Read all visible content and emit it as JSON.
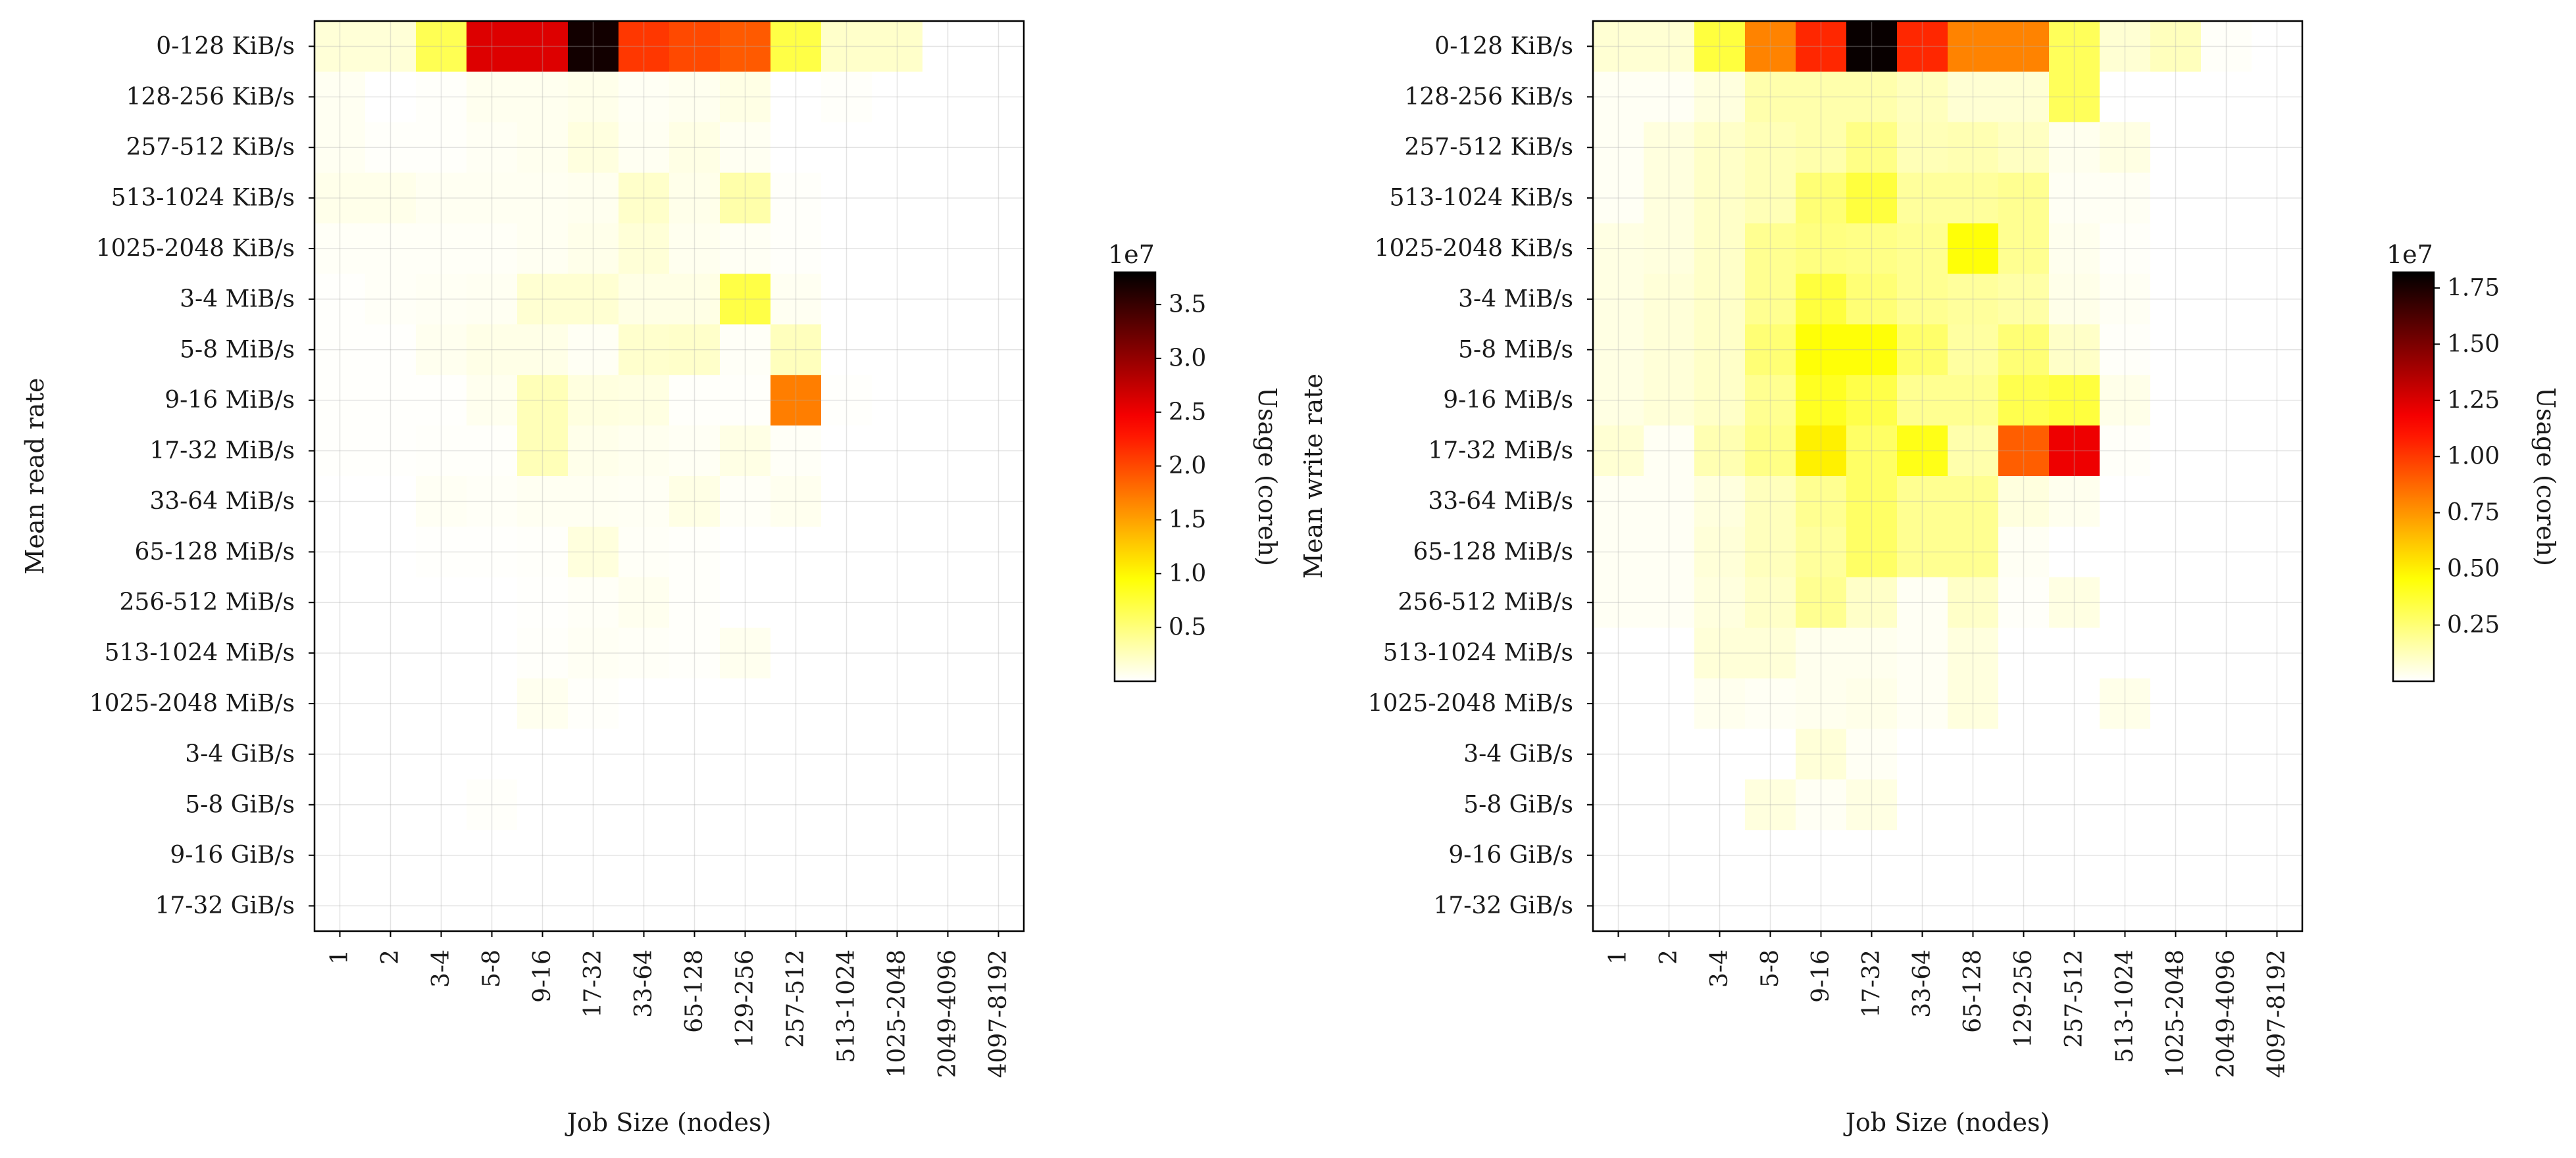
{
  "chart_data": [
    {
      "type": "heatmap",
      "xlabel": "Job Size (nodes)",
      "ylabel": "Mean read rate",
      "x_categories": [
        "1",
        "2",
        "3-4",
        "5-8",
        "9-16",
        "17-32",
        "33-64",
        "65-128",
        "129-256",
        "257-512",
        "513-1024",
        "1025-2048",
        "2049-4096",
        "4097-8192"
      ],
      "y_categories": [
        "0-128 KiB/s",
        "128-256 KiB/s",
        "257-512 KiB/s",
        "513-1024 KiB/s",
        "1025-2048 KiB/s",
        "3-4 MiB/s",
        "5-8 MiB/s",
        "9-16 MiB/s",
        "17-32 MiB/s",
        "33-64 MiB/s",
        "65-128 MiB/s",
        "256-512 MiB/s",
        "513-1024 MiB/s",
        "1025-2048 MiB/s",
        "3-4 GiB/s",
        "5-8 GiB/s",
        "9-16 GiB/s",
        "17-32 GiB/s"
      ],
      "values": [
        [
          1.5,
          1.5,
          6.5,
          26,
          26,
          37,
          21,
          20,
          19,
          7,
          2,
          2,
          0,
          0
        ],
        [
          0.5,
          0,
          0.2,
          0.6,
          0.6,
          0.8,
          0.4,
          0.6,
          1,
          0,
          0.2,
          0,
          0,
          0
        ],
        [
          0.5,
          0.2,
          0.2,
          0.4,
          0.6,
          1.2,
          0.5,
          1,
          0.5,
          0,
          0,
          0,
          0,
          0
        ],
        [
          0.8,
          0.8,
          0.5,
          0.5,
          0.5,
          0.6,
          2,
          0.8,
          3.2,
          0.2,
          0,
          0,
          0,
          0
        ],
        [
          0.3,
          0.3,
          0.3,
          0.3,
          0.5,
          0.8,
          1.5,
          0.6,
          0.4,
          0.2,
          0,
          0,
          0,
          0
        ],
        [
          0.1,
          0.3,
          0.4,
          0.5,
          1.7,
          1.7,
          1,
          1,
          7,
          0.5,
          0,
          0,
          0,
          0
        ],
        [
          0.1,
          0.1,
          0.6,
          0.9,
          0.9,
          0.4,
          1.9,
          2,
          0.3,
          2.5,
          0,
          0,
          0,
          0
        ],
        [
          0.1,
          0.1,
          0.1,
          0.6,
          2.7,
          1.2,
          1.1,
          0.2,
          0.2,
          17,
          0.1,
          0,
          0,
          0
        ],
        [
          0.1,
          0.1,
          0.2,
          0.2,
          2.7,
          0.8,
          0.6,
          0.4,
          1,
          0.3,
          0,
          0,
          0,
          0
        ],
        [
          0,
          0,
          0.4,
          0.3,
          0.5,
          0.5,
          0.4,
          1,
          0.3,
          0.6,
          0,
          0,
          0,
          0
        ],
        [
          0,
          0,
          0.1,
          0.1,
          0.2,
          1.3,
          0.3,
          0.2,
          0,
          0,
          0,
          0,
          0,
          0
        ],
        [
          0,
          0,
          0,
          0,
          0.1,
          0.3,
          0.6,
          0.2,
          0,
          0,
          0,
          0,
          0,
          0
        ],
        [
          0,
          0,
          0,
          0,
          0.2,
          0.4,
          0.3,
          0.2,
          0.6,
          0,
          0,
          0,
          0,
          0
        ],
        [
          0,
          0,
          0,
          0,
          0.6,
          0.2,
          0,
          0,
          0,
          0,
          0,
          0,
          0,
          0
        ],
        [
          0,
          0,
          0,
          0,
          0,
          0,
          0,
          0,
          0,
          0,
          0,
          0,
          0,
          0
        ],
        [
          0,
          0,
          0,
          0.2,
          0,
          0,
          0,
          0,
          0,
          0,
          0,
          0,
          0,
          0
        ],
        [
          0,
          0,
          0,
          0,
          0,
          0,
          0,
          0,
          0,
          0,
          0,
          0,
          0,
          0
        ],
        [
          0,
          0,
          0,
          0,
          0,
          0,
          0,
          0,
          0,
          0,
          0,
          0,
          0,
          0
        ]
      ],
      "value_scale": 1000000,
      "colorbar": {
        "label": "Usage (coreh)",
        "offset_label": "1e7",
        "min": 0,
        "max": 3.8,
        "ticks": [
          "0.5",
          "1.0",
          "1.5",
          "2.0",
          "2.5",
          "3.0",
          "3.5"
        ]
      },
      "colormap": "hot_r",
      "grid": true
    },
    {
      "type": "heatmap",
      "xlabel": "Job Size (nodes)",
      "ylabel": "Mean write rate",
      "x_categories": [
        "1",
        "2",
        "3-4",
        "5-8",
        "9-16",
        "17-32",
        "33-64",
        "65-128",
        "129-256",
        "257-512",
        "513-1024",
        "1025-2048",
        "2049-4096",
        "4097-8192"
      ],
      "y_categories": [
        "0-128 KiB/s",
        "128-256 KiB/s",
        "257-512 KiB/s",
        "513-1024 KiB/s",
        "1025-2048 KiB/s",
        "3-4 MiB/s",
        "5-8 MiB/s",
        "9-16 MiB/s",
        "17-32 MiB/s",
        "33-64 MiB/s",
        "65-128 MiB/s",
        "256-512 MiB/s",
        "513-1024 MiB/s",
        "1025-2048 MiB/s",
        "3-4 GiB/s",
        "5-8 GiB/s",
        "9-16 GiB/s",
        "17-32 GiB/s"
      ],
      "values": [
        [
          0.8,
          0.8,
          3.5,
          8,
          10.5,
          18,
          10.5,
          8,
          8,
          3,
          0.8,
          1.2,
          0.1,
          0
        ],
        [
          0.2,
          0.2,
          0.6,
          1.5,
          1.5,
          1.5,
          1.2,
          0.8,
          0.8,
          3,
          0,
          0,
          0,
          0
        ],
        [
          0.2,
          0.6,
          1,
          1.3,
          1.5,
          2.2,
          1.3,
          1.4,
          1.1,
          0.3,
          0.5,
          0,
          0,
          0
        ],
        [
          0.2,
          0.6,
          1,
          1.3,
          2.5,
          3.5,
          1.8,
          1.8,
          2,
          0.2,
          0.2,
          0,
          0,
          0
        ],
        [
          0.5,
          0.6,
          1,
          2,
          2.3,
          2.2,
          2,
          4.5,
          2,
          0.3,
          0.1,
          0,
          0,
          0
        ],
        [
          0.5,
          0.7,
          1,
          2,
          3.5,
          2.5,
          2,
          1.8,
          1.6,
          0.4,
          0.2,
          0,
          0,
          0
        ],
        [
          0.5,
          0.7,
          1,
          2.5,
          4.5,
          4.5,
          2.7,
          1.7,
          2.5,
          1,
          0.1,
          0,
          0,
          0
        ],
        [
          0.5,
          0.7,
          1,
          2,
          4,
          3.3,
          2,
          2,
          3.2,
          3.5,
          0.4,
          0,
          0,
          0
        ],
        [
          0.8,
          0.2,
          1.4,
          2.2,
          5,
          2.8,
          4.2,
          1.5,
          9,
          12,
          0.1,
          0,
          0,
          0
        ],
        [
          0.2,
          0.2,
          0.6,
          1.2,
          2,
          2.8,
          2,
          2,
          0.6,
          0.3,
          0,
          0,
          0,
          0
        ],
        [
          0.2,
          0.2,
          0.7,
          1.2,
          1.8,
          2.8,
          2,
          2,
          0.2,
          0,
          0,
          0,
          0,
          0
        ],
        [
          0.2,
          0.2,
          0.6,
          1,
          2,
          1,
          0.2,
          1,
          0.1,
          0.5,
          0,
          0,
          0,
          0
        ],
        [
          0,
          0,
          0.7,
          0.7,
          0.3,
          0.3,
          0.2,
          0.6,
          0,
          0,
          0,
          0,
          0,
          0
        ],
        [
          0,
          0,
          0.3,
          0.2,
          0.3,
          0.4,
          0.2,
          0.6,
          0,
          0,
          0.4,
          0,
          0,
          0
        ],
        [
          0,
          0,
          0,
          0,
          0.7,
          0.2,
          0,
          0,
          0,
          0,
          0,
          0,
          0,
          0
        ],
        [
          0,
          0,
          0,
          0.6,
          0.2,
          0.5,
          0,
          0,
          0,
          0,
          0,
          0,
          0,
          0
        ],
        [
          0,
          0,
          0,
          0,
          0,
          0,
          0,
          0,
          0,
          0,
          0,
          0,
          0,
          0
        ],
        [
          0,
          0,
          0,
          0,
          0,
          0,
          0,
          0,
          0,
          0,
          0,
          0,
          0,
          0
        ]
      ],
      "value_scale": 1000000,
      "colorbar": {
        "label": "Usage (coreh)",
        "offset_label": "1e7",
        "min": 0,
        "max": 1.82,
        "ticks": [
          "0.25",
          "0.50",
          "0.75",
          "1.00",
          "1.25",
          "1.50",
          "1.75"
        ]
      },
      "colormap": "hot_r",
      "grid": true
    }
  ]
}
